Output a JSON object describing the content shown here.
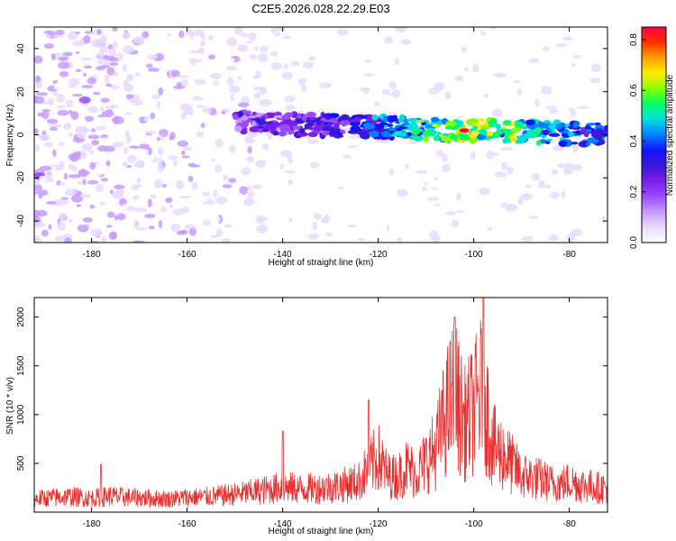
{
  "figure_title": "C2E5.2026.028.22.29.E03",
  "colors": {
    "snr_line": "#e83030",
    "axis": "#000000",
    "colormap": [
      "#ffffff",
      "#e9d9ff",
      "#c79bff",
      "#9a4bff",
      "#7a1ee6",
      "#3a18d8",
      "#1212ff",
      "#0080ff",
      "#00e0e0",
      "#00ff66",
      "#88ff00",
      "#ffee00",
      "#ffa000",
      "#ff3000",
      "#ff0040"
    ]
  },
  "chart_data": [
    {
      "type": "heatmap",
      "title": "C2E5.2026.028.22.29.E03",
      "xlabel": "Height of straight line (km)",
      "ylabel": "Frequency (Hz)",
      "xlim": [
        -192,
        -72
      ],
      "ylim": [
        -50,
        50
      ],
      "xticks": [
        -180,
        -160,
        -140,
        -120,
        -100,
        -80
      ],
      "yticks": [
        -40,
        -20,
        0,
        20,
        40
      ],
      "xtick_labels": [
        "-180",
        "-160",
        "-140",
        "-120",
        "-100",
        "-80"
      ],
      "ytick_labels": [
        "-40",
        "-20",
        "0",
        "20",
        "40"
      ],
      "colorbar": {
        "label": "Normalized spectral amplitude",
        "range": [
          0,
          0.85
        ],
        "ticks": [
          0,
          0.2,
          0.4,
          0.6,
          0.8
        ],
        "tick_labels": [
          "0.0",
          "0.2",
          "0.4",
          "0.6",
          "0.8"
        ]
      },
      "ridge": {
        "description": "main signal band",
        "x_start": -150,
        "x_end": -72,
        "freq_at_start": 6,
        "freq_at_end": 0,
        "peak": {
          "x": -102,
          "freq": 2,
          "amplitude": 0.85
        }
      }
    },
    {
      "type": "line",
      "xlabel": "Height of straight line (km)",
      "ylabel": "SNR (10 * v/v)",
      "xlim": [
        -192,
        -72
      ],
      "ylim": [
        0,
        2200
      ],
      "xticks": [
        -180,
        -160,
        -140,
        -120,
        -100,
        -80
      ],
      "yticks": [
        500,
        1000,
        1500,
        2000
      ],
      "xtick_labels": [
        "-180",
        "-160",
        "-140",
        "-120",
        "-100",
        "-80"
      ],
      "ytick_labels": [
        "500",
        "1000",
        "1500",
        "2000"
      ],
      "series": [
        {
          "name": "SNR",
          "x": [
            -192,
            -188,
            -184,
            -180,
            -176,
            -172,
            -168,
            -164,
            -160,
            -156,
            -152,
            -148,
            -144,
            -140,
            -136,
            -132,
            -128,
            -124,
            -122,
            -120,
            -118,
            -116,
            -114,
            -112,
            -110,
            -108,
            -106,
            -104,
            -102,
            -100,
            -98,
            -96,
            -94,
            -92,
            -90,
            -88,
            -86,
            -84,
            -82,
            -80,
            -78,
            -76,
            -74,
            -72
          ],
          "values": [
            180,
            200,
            210,
            190,
            220,
            200,
            190,
            180,
            200,
            210,
            230,
            260,
            300,
            340,
            320,
            330,
            360,
            420,
            600,
            750,
            500,
            480,
            620,
            520,
            700,
            850,
            1300,
            1650,
            1200,
            1400,
            1700,
            900,
            800,
            650,
            500,
            480,
            450,
            400,
            380,
            420,
            380,
            360,
            340,
            330
          ],
          "peaks": [
            {
              "x": -104,
              "value": 2000
            },
            {
              "x": -98,
              "value": 2200
            },
            {
              "x": -122,
              "value": 1150
            },
            {
              "x": -140,
              "value": 830
            },
            {
              "x": -178,
              "value": 490
            }
          ]
        }
      ]
    }
  ]
}
